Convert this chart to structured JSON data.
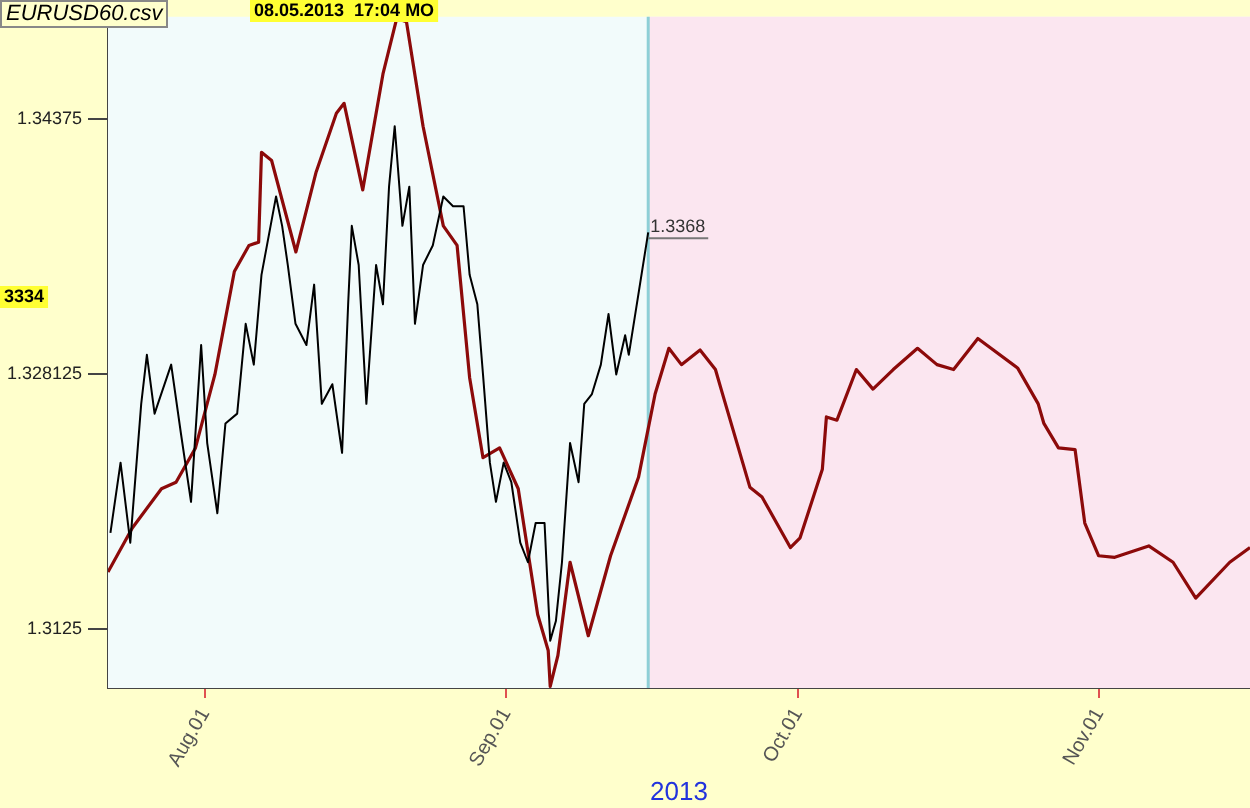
{
  "chart_data": {
    "type": "line",
    "title": "EURUSD60.csv",
    "xlabel": "2013",
    "annotations": [
      "08.05.2013  17:04 MO",
      "3334",
      {
        "text": "1.3368",
        "x": "2013-09-15T14:00",
        "y": 1.3368
      }
    ],
    "xlim": [
      "2013-07-22",
      "2013-11-16T12:00"
    ],
    "xticks": [
      {
        "value": "2013-08-01",
        "label": "Aug.01"
      },
      {
        "value": "2013-09-01",
        "label": "Sep.01"
      },
      {
        "value": "2013-10-01",
        "label": "Oct.01"
      },
      {
        "value": "2013-11-01",
        "label": "Nov.01"
      }
    ],
    "ylim": [
      1.3089,
      1.35
    ],
    "yticks": [
      1.3125,
      1.328125,
      1.34375
    ],
    "ref_lines": [
      {
        "axis": "x",
        "value": "2013-09-15T14:00",
        "color": "#8ecfd6"
      }
    ],
    "bands": [
      {
        "axis": "x",
        "from": "2013-09-15T14:00",
        "to": "2013-11-16T12:00",
        "color": "#fbe6f0"
      }
    ],
    "legend": false,
    "series": [
      {
        "color": "#000000",
        "x": [
          "2013-07-22T06:00",
          "2013-07-23T07:00",
          "2013-07-24T07:00",
          "2013-07-25T10:00",
          "2013-07-26",
          "2013-07-26T19:00",
          "2013-07-28T12:00",
          "2013-07-29T12:00",
          "2013-07-30T13:00",
          "2013-07-31T14:00",
          "2013-08-01T05:00",
          "2013-08-02T06:00",
          "2013-08-03T02:00",
          "2013-08-04T07:00",
          "2013-08-05T04:00",
          "2013-08-06",
          "2013-08-06T19:00",
          "2013-08-08T07:00",
          "2013-08-08T22:00",
          "2013-08-09T12:00",
          "2013-08-10T07:00",
          "2013-08-11T10:00",
          "2013-08-12T05:00",
          "2013-08-13",
          "2013-08-14T02:00",
          "2013-08-15T02:00",
          "2013-08-15T17:00",
          "2013-08-16T02:00",
          "2013-08-16T19:00",
          "2013-08-17T14:00",
          "2013-08-18T14:00",
          "2013-08-19T07:00",
          "2013-08-19T22:00",
          "2013-08-20T12:00",
          "2013-08-21T07:00",
          "2013-08-22",
          "2013-08-22T14:00",
          "2013-08-23T10:00",
          "2013-08-24T10:00",
          "2013-08-25T12:00",
          "2013-08-26T12:00",
          "2013-08-27T14:00",
          "2013-08-28T05:00",
          "2013-08-29",
          "2013-08-29T14:00",
          "2013-08-30T07:00",
          "2013-08-30T22:00",
          "2013-08-31T17:00",
          "2013-09-01T12:00",
          "2013-09-02T10:00",
          "2013-09-03T05:00",
          "2013-09-04",
          "2013-09-04T22:00",
          "2013-09-05T12:00",
          "2013-09-06T02:00",
          "2013-09-06T17:00",
          "2013-09-07T13:00",
          "2013-09-08T10:00",
          "2013-09-09",
          "2013-09-09T19:00",
          "2013-09-10T17:00",
          "2013-09-11T12:00",
          "2013-09-12T07:00",
          "2013-09-13T05:00",
          "2013-09-13T14:00",
          "2013-09-15T14:00"
        ],
        "values": [
          1.3184,
          1.3227,
          1.3178,
          1.3263,
          1.3293,
          1.3257,
          1.3287,
          1.3245,
          1.3203,
          1.3299,
          1.3239,
          1.3196,
          1.3251,
          1.3257,
          1.3312,
          1.3287,
          1.3342,
          1.339,
          1.3372,
          1.3348,
          1.3312,
          1.3299,
          1.3336,
          1.3263,
          1.3275,
          1.3233,
          1.3324,
          1.3372,
          1.3348,
          1.3263,
          1.3348,
          1.3324,
          1.3396,
          1.3433,
          1.3372,
          1.3396,
          1.3312,
          1.3348,
          1.336,
          1.339,
          1.3384,
          1.3384,
          1.3342,
          1.3324,
          1.3281,
          1.3227,
          1.3203,
          1.3227,
          1.3215,
          1.3178,
          1.3166,
          1.319,
          1.319,
          1.3118,
          1.313,
          1.3166,
          1.3239,
          1.3215,
          1.3263,
          1.3269,
          1.3287,
          1.3318,
          1.3281,
          1.3305,
          1.3293,
          1.3368
        ]
      },
      {
        "color": "#8c0a0a",
        "x": [
          "2013-07-22",
          "2013-07-24T12:00",
          "2013-07-27T12:00",
          "2013-07-29",
          "2013-07-31",
          "2013-08-02",
          "2013-08-04",
          "2013-08-05T12:00",
          "2013-08-06T12:00",
          "2013-08-06T19:00",
          "2013-08-07T20:00",
          "2013-08-10T08:00",
          "2013-08-12T10:00",
          "2013-08-14T12:00",
          "2013-08-15T07:00",
          "2013-08-17T05:00",
          "2013-08-19T07:00",
          "2013-08-20T17:00",
          "2013-08-21T17:00",
          "2013-08-23T10:00",
          "2013-08-25T12:00",
          "2013-08-26T22:00",
          "2013-08-28T05:00",
          "2013-08-29T14:00",
          "2013-08-31T07:00",
          "2013-09-02T05:00",
          "2013-09-04T05:00",
          "2013-09-05T07:00",
          "2013-09-05T12:00",
          "2013-09-06T07:00",
          "2013-09-07T13:00",
          "2013-09-09T10:00",
          "2013-09-11T17:00",
          "2013-09-14T14:00",
          "2013-09-16T07:00",
          "2013-09-17T17:00",
          "2013-09-19",
          "2013-09-20T22:00",
          "2013-09-22T12:00",
          "2013-09-23T02:00",
          "2013-09-26T01:00",
          "2013-09-27T07:00",
          "2013-09-30T05:00",
          "2013-10-01T05:00",
          "2013-10-03T12:00",
          "2013-10-03T22:00",
          "2013-10-05",
          "2013-10-07",
          "2013-10-08T17:00",
          "2013-10-10T19:00",
          "2013-10-13T07:00",
          "2013-10-15T07:00",
          "2013-10-17",
          "2013-10-19T12:00",
          "2013-10-23T14:00",
          "2013-10-25T17:00",
          "2013-10-26T07:00",
          "2013-10-27T19:00",
          "2013-10-29T12:00",
          "2013-10-30T12:00",
          "2013-10-31T22:00",
          "2013-11-02T14:00",
          "2013-11-06T02:00",
          "2013-11-08T14:00",
          "2013-11-10T22:00",
          "2013-11-14T10:00",
          "2013-11-16T12:00"
        ],
        "values": [
          1.316,
          1.3187,
          1.3211,
          1.3215,
          1.3236,
          1.3281,
          1.3344,
          1.336,
          1.3362,
          1.3417,
          1.3412,
          1.3356,
          1.3405,
          1.3441,
          1.3447,
          1.3394,
          1.3465,
          1.3499,
          1.3497,
          1.3433,
          1.3372,
          1.336,
          1.3279,
          1.323,
          1.3236,
          1.3211,
          1.3134,
          1.3112,
          1.309,
          1.3109,
          1.3166,
          1.3121,
          1.317,
          1.3218,
          1.3269,
          1.3297,
          1.3287,
          1.3296,
          1.3284,
          1.3272,
          1.3212,
          1.3206,
          1.3175,
          1.3181,
          1.3223,
          1.3255,
          1.3253,
          1.3284,
          1.3272,
          1.3284,
          1.3297,
          1.3287,
          1.3284,
          1.3303,
          1.3285,
          1.3263,
          1.3251,
          1.3236,
          1.3235,
          1.319,
          1.317,
          1.3169,
          1.3176,
          1.3166,
          1.3144,
          1.3166,
          1.3175
        ]
      }
    ]
  }
}
